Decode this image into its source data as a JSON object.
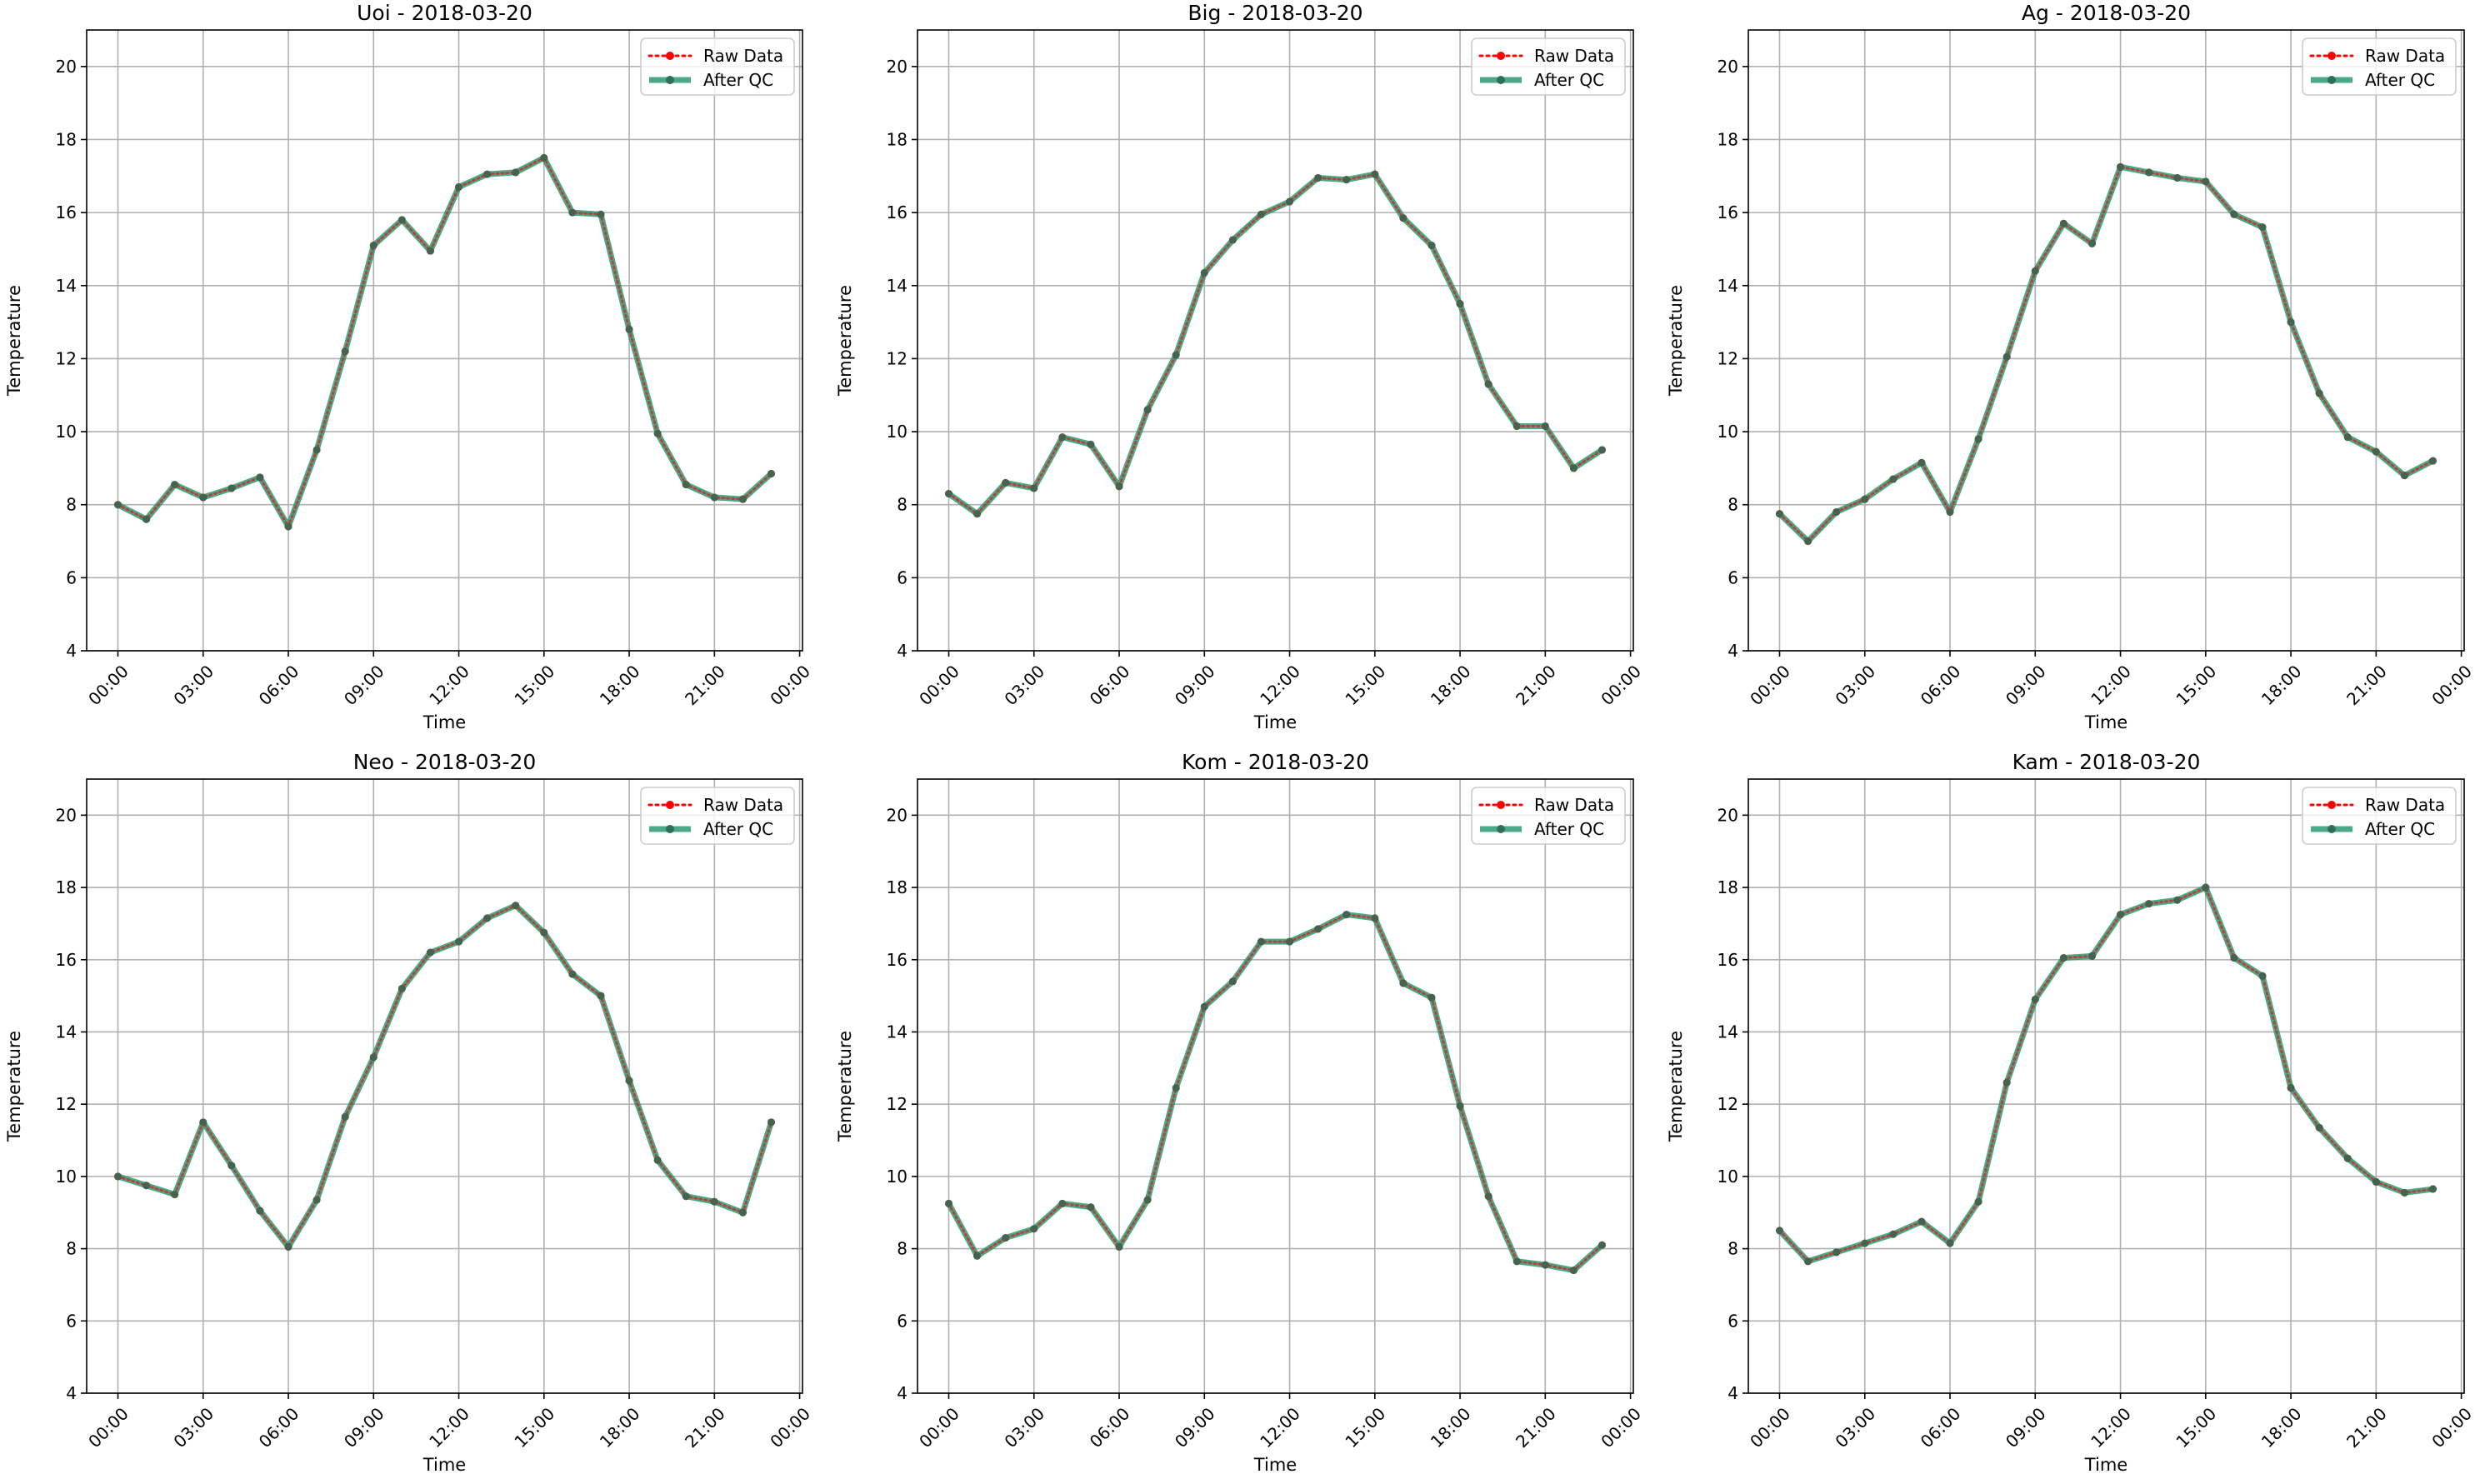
{
  "colors": {
    "raw": "#ff0000",
    "qc": "#2a9a74",
    "grid": "#b0b0b0"
  },
  "chart_data": [
    {
      "type": "line",
      "title": "Uoi - 2018-03-20",
      "xlabel": "Time",
      "ylabel": "Temperature",
      "ylim": [
        4,
        21
      ],
      "yticks": [
        4,
        6,
        8,
        10,
        12,
        14,
        16,
        18,
        20
      ],
      "xlim_hours": [
        -1.1,
        24.1
      ],
      "xtick_hours": [
        0,
        3,
        6,
        9,
        12,
        15,
        18,
        21,
        24
      ],
      "xtick_labels": [
        "00:00",
        "03:00",
        "06:00",
        "09:00",
        "12:00",
        "15:00",
        "18:00",
        "21:00",
        "00:00"
      ],
      "grid": true,
      "legend_position": "top-right",
      "x": [
        "00:00",
        "01:00",
        "02:00",
        "03:00",
        "04:00",
        "05:00",
        "06:00",
        "07:00",
        "08:00",
        "09:00",
        "10:00",
        "11:00",
        "12:00",
        "13:00",
        "14:00",
        "15:00",
        "16:00",
        "17:00",
        "18:00",
        "19:00",
        "20:00",
        "21:00",
        "22:00",
        "23:00"
      ],
      "series": [
        {
          "name": "Raw Data",
          "style": "dotted",
          "values": [
            8.0,
            7.6,
            8.55,
            8.2,
            8.45,
            8.75,
            7.4,
            9.5,
            12.2,
            15.1,
            15.8,
            14.95,
            16.7,
            17.05,
            17.1,
            17.5,
            16.0,
            15.95,
            12.8,
            9.95,
            8.55,
            8.2,
            8.15,
            8.85
          ]
        },
        {
          "name": "After QC",
          "style": "solid",
          "values": [
            8.0,
            7.6,
            8.55,
            8.2,
            8.45,
            8.75,
            7.4,
            9.5,
            12.2,
            15.1,
            15.8,
            14.95,
            16.7,
            17.05,
            17.1,
            17.5,
            16.0,
            15.95,
            12.8,
            9.95,
            8.55,
            8.2,
            8.15,
            8.85
          ]
        }
      ]
    },
    {
      "type": "line",
      "title": "Big - 2018-03-20",
      "xlabel": "Time",
      "ylabel": "Temperature",
      "ylim": [
        4,
        21
      ],
      "yticks": [
        4,
        6,
        8,
        10,
        12,
        14,
        16,
        18,
        20
      ],
      "xlim_hours": [
        -1.1,
        24.1
      ],
      "xtick_hours": [
        0,
        3,
        6,
        9,
        12,
        15,
        18,
        21,
        24
      ],
      "xtick_labels": [
        "00:00",
        "03:00",
        "06:00",
        "09:00",
        "12:00",
        "15:00",
        "18:00",
        "21:00",
        "00:00"
      ],
      "grid": true,
      "legend_position": "top-right",
      "x": [
        "00:00",
        "01:00",
        "02:00",
        "03:00",
        "04:00",
        "05:00",
        "06:00",
        "07:00",
        "08:00",
        "09:00",
        "10:00",
        "11:00",
        "12:00",
        "13:00",
        "14:00",
        "15:00",
        "16:00",
        "17:00",
        "18:00",
        "19:00",
        "20:00",
        "21:00",
        "22:00",
        "23:00"
      ],
      "series": [
        {
          "name": "Raw Data",
          "style": "dotted",
          "values": [
            8.3,
            7.75,
            8.6,
            8.45,
            9.85,
            9.65,
            8.5,
            10.6,
            12.1,
            14.35,
            15.25,
            15.95,
            16.3,
            16.95,
            16.9,
            17.05,
            15.85,
            15.1,
            13.5,
            11.3,
            10.15,
            10.15,
            9.0,
            9.5
          ]
        },
        {
          "name": "After QC",
          "style": "solid",
          "values": [
            8.3,
            7.75,
            8.6,
            8.45,
            9.85,
            9.65,
            8.5,
            10.6,
            12.1,
            14.35,
            15.25,
            15.95,
            16.3,
            16.95,
            16.9,
            17.05,
            15.85,
            15.1,
            13.5,
            11.3,
            10.15,
            10.15,
            9.0,
            9.5
          ]
        }
      ]
    },
    {
      "type": "line",
      "title": "Ag - 2018-03-20",
      "xlabel": "Time",
      "ylabel": "Temperature",
      "ylim": [
        4,
        21
      ],
      "yticks": [
        4,
        6,
        8,
        10,
        12,
        14,
        16,
        18,
        20
      ],
      "xlim_hours": [
        -1.1,
        24.1
      ],
      "xtick_hours": [
        0,
        3,
        6,
        9,
        12,
        15,
        18,
        21,
        24
      ],
      "xtick_labels": [
        "00:00",
        "03:00",
        "06:00",
        "09:00",
        "12:00",
        "15:00",
        "18:00",
        "21:00",
        "00:00"
      ],
      "grid": true,
      "legend_position": "top-right",
      "x": [
        "00:00",
        "01:00",
        "02:00",
        "03:00",
        "04:00",
        "05:00",
        "06:00",
        "07:00",
        "08:00",
        "09:00",
        "10:00",
        "11:00",
        "12:00",
        "13:00",
        "14:00",
        "15:00",
        "16:00",
        "17:00",
        "18:00",
        "19:00",
        "20:00",
        "21:00",
        "22:00",
        "23:00"
      ],
      "series": [
        {
          "name": "Raw Data",
          "style": "dotted",
          "values": [
            7.75,
            7.0,
            7.8,
            8.15,
            8.7,
            9.15,
            7.8,
            9.8,
            12.05,
            14.4,
            15.7,
            15.15,
            17.25,
            17.1,
            16.95,
            16.85,
            15.95,
            15.6,
            13.0,
            11.05,
            9.85,
            9.45,
            8.8,
            9.2
          ]
        },
        {
          "name": "After QC",
          "style": "solid",
          "values": [
            7.75,
            7.0,
            7.8,
            8.15,
            8.7,
            9.15,
            7.8,
            9.8,
            12.05,
            14.4,
            15.7,
            15.15,
            17.25,
            17.1,
            16.95,
            16.85,
            15.95,
            15.6,
            13.0,
            11.05,
            9.85,
            9.45,
            8.8,
            9.2
          ]
        }
      ]
    },
    {
      "type": "line",
      "title": "Neo - 2018-03-20",
      "xlabel": "Time",
      "ylabel": "Temperature",
      "ylim": [
        4,
        21
      ],
      "yticks": [
        4,
        6,
        8,
        10,
        12,
        14,
        16,
        18,
        20
      ],
      "xlim_hours": [
        -1.1,
        24.1
      ],
      "xtick_hours": [
        0,
        3,
        6,
        9,
        12,
        15,
        18,
        21,
        24
      ],
      "xtick_labels": [
        "00:00",
        "03:00",
        "06:00",
        "09:00",
        "12:00",
        "15:00",
        "18:00",
        "21:00",
        "00:00"
      ],
      "grid": true,
      "legend_position": "top-right",
      "x": [
        "00:00",
        "01:00",
        "02:00",
        "03:00",
        "04:00",
        "05:00",
        "06:00",
        "07:00",
        "08:00",
        "09:00",
        "10:00",
        "11:00",
        "12:00",
        "13:00",
        "14:00",
        "15:00",
        "16:00",
        "17:00",
        "18:00",
        "19:00",
        "20:00",
        "21:00",
        "22:00",
        "23:00"
      ],
      "series": [
        {
          "name": "Raw Data",
          "style": "dotted",
          "values": [
            10.0,
            9.75,
            9.5,
            11.5,
            10.3,
            9.05,
            8.05,
            9.35,
            11.65,
            13.3,
            15.2,
            16.2,
            16.5,
            17.15,
            17.5,
            16.75,
            15.6,
            15.0,
            12.65,
            10.45,
            9.45,
            9.3,
            9.0,
            11.5
          ]
        },
        {
          "name": "After QC",
          "style": "solid",
          "values": [
            10.0,
            9.75,
            9.5,
            11.5,
            10.3,
            9.05,
            8.05,
            9.35,
            11.65,
            13.3,
            15.2,
            16.2,
            16.5,
            17.15,
            17.5,
            16.75,
            15.6,
            15.0,
            12.65,
            10.45,
            9.45,
            9.3,
            9.0,
            11.5
          ]
        }
      ]
    },
    {
      "type": "line",
      "title": "Kom - 2018-03-20",
      "xlabel": "Time",
      "ylabel": "Temperature",
      "ylim": [
        4,
        21
      ],
      "yticks": [
        4,
        6,
        8,
        10,
        12,
        14,
        16,
        18,
        20
      ],
      "xlim_hours": [
        -1.1,
        24.1
      ],
      "xtick_hours": [
        0,
        3,
        6,
        9,
        12,
        15,
        18,
        21,
        24
      ],
      "xtick_labels": [
        "00:00",
        "03:00",
        "06:00",
        "09:00",
        "12:00",
        "15:00",
        "18:00",
        "21:00",
        "00:00"
      ],
      "grid": true,
      "legend_position": "top-right",
      "x": [
        "00:00",
        "01:00",
        "02:00",
        "03:00",
        "04:00",
        "05:00",
        "06:00",
        "07:00",
        "08:00",
        "09:00",
        "10:00",
        "11:00",
        "12:00",
        "13:00",
        "14:00",
        "15:00",
        "16:00",
        "17:00",
        "18:00",
        "19:00",
        "20:00",
        "21:00",
        "22:00",
        "23:00"
      ],
      "series": [
        {
          "name": "Raw Data",
          "style": "dotted",
          "values": [
            9.25,
            7.8,
            8.3,
            8.55,
            9.25,
            9.15,
            8.05,
            9.35,
            12.45,
            14.7,
            15.4,
            16.5,
            16.5,
            16.85,
            17.25,
            17.15,
            15.35,
            14.95,
            11.95,
            9.45,
            7.65,
            7.55,
            7.4,
            8.1
          ]
        },
        {
          "name": "After QC",
          "style": "solid",
          "values": [
            9.25,
            7.8,
            8.3,
            8.55,
            9.25,
            9.15,
            8.05,
            9.35,
            12.45,
            14.7,
            15.4,
            16.5,
            16.5,
            16.85,
            17.25,
            17.15,
            15.35,
            14.95,
            11.95,
            9.45,
            7.65,
            7.55,
            7.4,
            8.1
          ]
        }
      ]
    },
    {
      "type": "line",
      "title": "Kam - 2018-03-20",
      "xlabel": "Time",
      "ylabel": "Temperature",
      "ylim": [
        4,
        21
      ],
      "yticks": [
        4,
        6,
        8,
        10,
        12,
        14,
        16,
        18,
        20
      ],
      "xlim_hours": [
        -1.1,
        24.1
      ],
      "xtick_hours": [
        0,
        3,
        6,
        9,
        12,
        15,
        18,
        21,
        24
      ],
      "xtick_labels": [
        "00:00",
        "03:00",
        "06:00",
        "09:00",
        "12:00",
        "15:00",
        "18:00",
        "21:00",
        "00:00"
      ],
      "grid": true,
      "legend_position": "top-right",
      "x": [
        "00:00",
        "01:00",
        "02:00",
        "03:00",
        "04:00",
        "05:00",
        "06:00",
        "07:00",
        "08:00",
        "09:00",
        "10:00",
        "11:00",
        "12:00",
        "13:00",
        "14:00",
        "15:00",
        "16:00",
        "17:00",
        "18:00",
        "19:00",
        "20:00",
        "21:00",
        "22:00",
        "23:00"
      ],
      "series": [
        {
          "name": "Raw Data",
          "style": "dotted",
          "values": [
            8.5,
            7.65,
            7.9,
            8.15,
            8.4,
            8.75,
            8.15,
            9.3,
            12.6,
            14.9,
            16.05,
            16.1,
            17.25,
            17.55,
            17.65,
            18.0,
            16.05,
            15.55,
            12.45,
            11.35,
            10.5,
            9.85,
            9.55,
            9.65
          ]
        },
        {
          "name": "After QC",
          "style": "solid",
          "values": [
            8.5,
            7.65,
            7.9,
            8.15,
            8.4,
            8.75,
            8.15,
            9.3,
            12.6,
            14.9,
            16.05,
            16.1,
            17.25,
            17.55,
            17.65,
            18.0,
            16.05,
            15.55,
            12.45,
            11.35,
            10.5,
            9.85,
            9.55,
            9.65
          ]
        }
      ]
    }
  ]
}
